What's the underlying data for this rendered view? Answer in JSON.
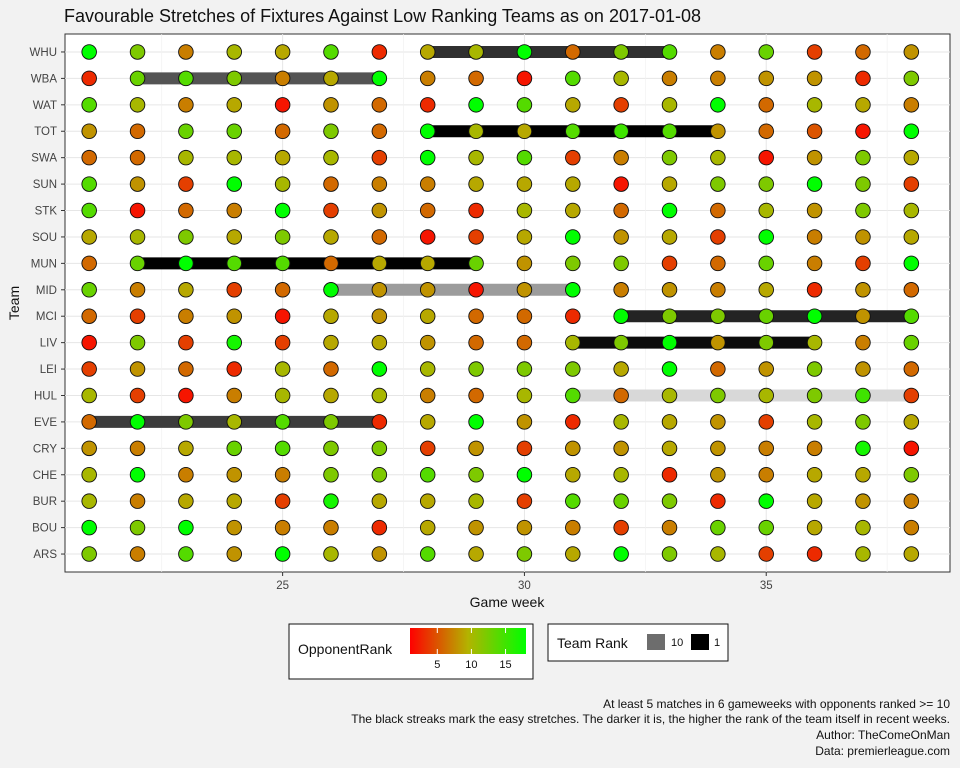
{
  "chart_data": {
    "type": "scatter",
    "title": "Favourable Stretches of Fixtures Against Low Ranking Teams as on 2017-01-08",
    "xlabel": "Game week",
    "ylabel": "Team",
    "xlim": [
      20.5,
      38.8
    ],
    "x_ticks": [
      25,
      30,
      35
    ],
    "x": [
      21,
      22,
      23,
      24,
      25,
      26,
      27,
      28,
      29,
      30,
      31,
      32,
      33,
      34,
      35,
      36,
      37,
      38
    ],
    "teams": [
      "WHU",
      "WBA",
      "WAT",
      "TOT",
      "SWA",
      "SUN",
      "STK",
      "SOU",
      "MUN",
      "MID",
      "MCI",
      "LIV",
      "LEI",
      "HUL",
      "EVE",
      "CRY",
      "CHE",
      "BUR",
      "BOU",
      "ARS"
    ],
    "opponent_rank_matrix": [
      [
        19,
        12,
        7,
        10,
        9,
        14,
        3,
        9,
        10,
        19,
        6,
        12,
        14,
        7,
        13,
        4,
        6,
        8
      ],
      [
        3,
        13,
        14,
        12,
        7,
        9,
        19,
        7,
        6,
        2,
        14,
        10,
        7,
        7,
        8,
        8,
        3,
        12
      ],
      [
        14,
        10,
        7,
        9,
        2,
        8,
        6,
        3,
        18,
        14,
        9,
        4,
        10,
        18,
        6,
        10,
        9,
        7
      ],
      [
        8,
        6,
        13,
        13,
        6,
        12,
        6,
        19,
        10,
        9,
        14,
        15,
        14,
        8,
        6,
        5,
        2,
        19
      ],
      [
        6,
        6,
        10,
        10,
        9,
        10,
        4,
        19,
        10,
        14,
        4,
        7,
        12,
        10,
        2,
        8,
        12,
        9
      ],
      [
        14,
        8,
        4,
        19,
        10,
        6,
        7,
        7,
        9,
        9,
        9,
        2,
        9,
        12,
        12,
        18,
        12,
        4
      ],
      [
        14,
        2,
        6,
        7,
        18,
        4,
        8,
        6,
        3,
        10,
        9,
        6,
        19,
        6,
        10,
        8,
        12,
        10
      ],
      [
        9,
        10,
        12,
        9,
        12,
        9,
        6,
        2,
        4,
        9,
        18,
        8,
        9,
        4,
        18,
        7,
        8,
        9
      ],
      [
        6,
        13,
        19,
        14,
        14,
        6,
        9,
        9,
        13,
        8,
        12,
        12,
        4,
        6,
        13,
        7,
        4,
        19
      ],
      [
        13,
        7,
        9,
        4,
        6,
        18,
        8,
        8,
        2,
        8,
        18,
        7,
        8,
        7,
        9,
        3,
        8,
        6
      ],
      [
        6,
        4,
        7,
        8,
        2,
        9,
        8,
        9,
        6,
        6,
        3,
        19,
        12,
        12,
        13,
        18,
        8,
        14
      ],
      [
        2,
        12,
        4,
        17,
        4,
        9,
        9,
        8,
        6,
        6,
        10,
        12,
        18,
        8,
        12,
        10,
        7,
        13
      ],
      [
        4,
        8,
        6,
        3,
        10,
        6,
        19,
        10,
        12,
        12,
        12,
        9,
        18,
        6,
        8,
        12,
        8,
        6
      ],
      [
        10,
        4,
        2,
        7,
        10,
        9,
        10,
        7,
        6,
        10,
        14,
        6,
        10,
        12,
        10,
        12,
        15,
        4
      ],
      [
        6,
        18,
        12,
        10,
        14,
        12,
        3,
        9,
        18,
        8,
        3,
        10,
        9,
        8,
        4,
        10,
        12,
        9
      ],
      [
        8,
        7,
        9,
        13,
        14,
        12,
        12,
        4,
        8,
        4,
        8,
        8,
        9,
        8,
        7,
        7,
        17,
        2
      ],
      [
        10,
        18,
        7,
        8,
        7,
        12,
        12,
        14,
        12,
        18,
        9,
        10,
        3,
        8,
        7,
        9,
        9,
        12
      ],
      [
        10,
        7,
        9,
        9,
        4,
        17,
        9,
        9,
        10,
        4,
        14,
        13,
        12,
        3,
        18,
        9,
        8,
        7
      ],
      [
        18,
        12,
        18,
        8,
        7,
        7,
        3,
        9,
        8,
        8,
        7,
        4,
        7,
        13,
        13,
        9,
        10,
        7
      ],
      [
        12,
        7,
        14,
        8,
        18,
        10,
        8,
        14,
        9,
        12,
        9,
        18,
        12,
        10,
        4,
        3,
        10,
        9
      ]
    ],
    "streaks": [
      {
        "team": "WHU",
        "start": 28,
        "end": 33,
        "team_rank": 5
      },
      {
        "team": "WBA",
        "start": 22,
        "end": 27,
        "team_rank": 8
      },
      {
        "team": "TOT",
        "start": 28,
        "end": 34,
        "team_rank": 1
      },
      {
        "team": "MUN",
        "start": 22,
        "end": 29,
        "team_rank": 1
      },
      {
        "team": "MID",
        "start": 26,
        "end": 31,
        "team_rank": 14
      },
      {
        "team": "MCI",
        "start": 32,
        "end": 38,
        "team_rank": 4
      },
      {
        "team": "LIV",
        "start": 31,
        "end": 36,
        "team_rank": 2
      },
      {
        "team": "HUL",
        "start": 31,
        "end": 38,
        "team_rank": 19
      },
      {
        "team": "EVE",
        "start": 21,
        "end": 27,
        "team_rank": 6
      }
    ],
    "legend": {
      "color_title": "OpponentRank",
      "color_ticks": [
        "5",
        "10",
        "15"
      ],
      "color_range": [
        1,
        18
      ],
      "low_color": "#ff0000",
      "mid_color": "#b3b300",
      "high_color": "#00ff00",
      "size_title": "Team Rank",
      "size_items": [
        {
          "label": "10",
          "color": "#6d6d6d"
        },
        {
          "label": "1",
          "color": "#000000"
        }
      ]
    },
    "captions": [
      "At least 5 matches in 6 gameweeks with opponents ranked >= 10",
      "The black streaks mark the easy stretches. The darker it is, the higher the rank of the team itself in recent weeks.",
      "Author: TheComeOnMan",
      "Data: premierleague.com"
    ]
  }
}
